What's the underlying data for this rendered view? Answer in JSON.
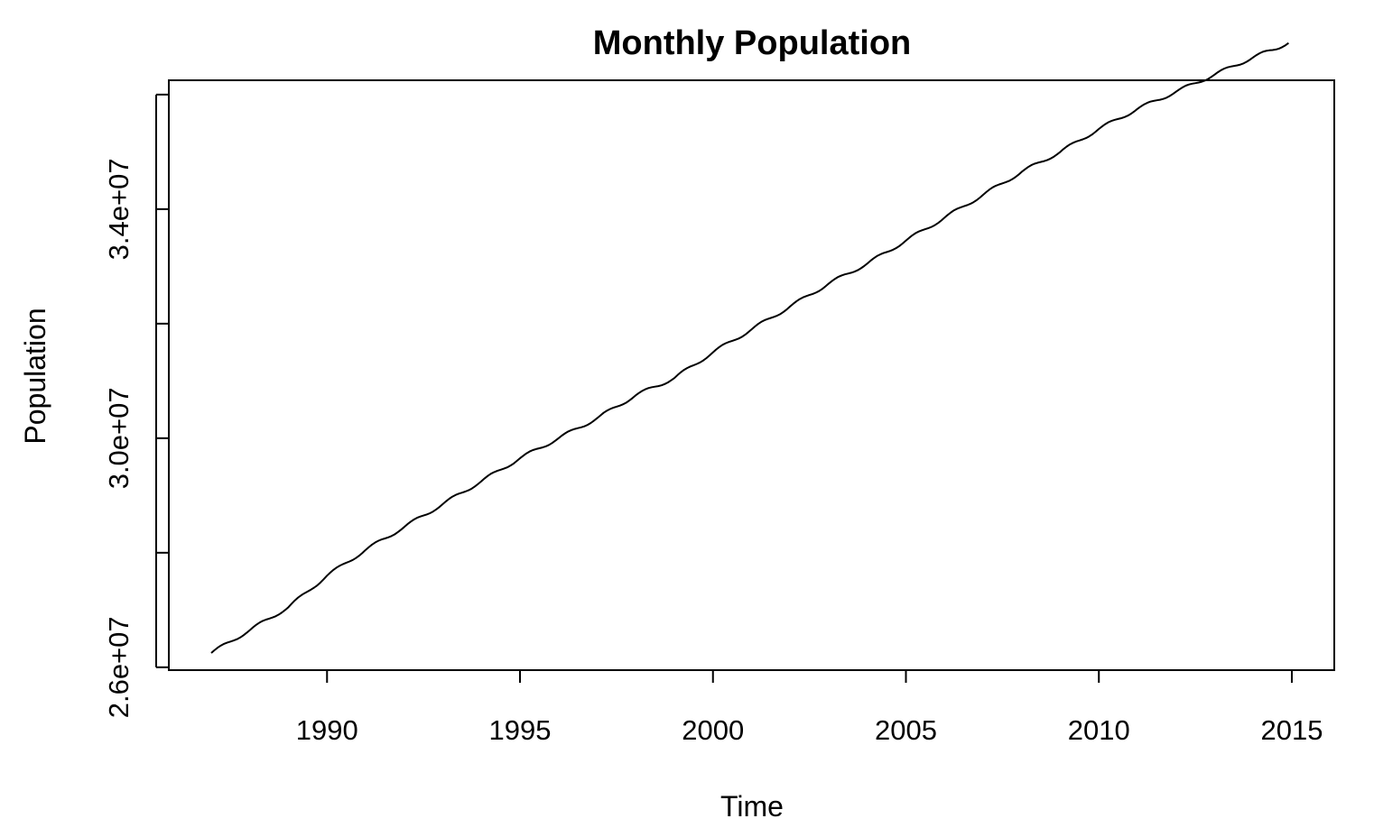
{
  "chart_data": {
    "type": "line",
    "title": "Monthly Population",
    "xlabel": "Time",
    "ylabel": "Population",
    "x_ticks": [
      1990,
      1995,
      2000,
      2005,
      2010,
      2015
    ],
    "x_tick_labels": [
      "1990",
      "1995",
      "2000",
      "2005",
      "2010",
      "2015"
    ],
    "y_ticks": [
      26000000,
      28000000,
      30000000,
      32000000,
      34000000,
      36000000
    ],
    "y_tick_labels": [
      "2.6e+07",
      "",
      "3.0e+07",
      "",
      "3.4e+07",
      ""
    ],
    "xlim": [
      1985.9,
      2016.1
    ],
    "ylim": [
      25950000,
      36250000
    ],
    "grid": false,
    "legend": "none",
    "line_color": "#000000",
    "series": [
      {
        "x": [
          1987.0,
          1988.0,
          1989.0,
          1990.0,
          1991.0,
          1992.0,
          1993.0,
          1994.0,
          1995.0,
          1996.0,
          1997.0,
          1998.0,
          1999.0,
          2000.0,
          2001.0,
          2002.0,
          2003.0,
          2004.0,
          2005.0,
          2006.0,
          2007.0,
          2008.0,
          2009.0,
          2010.0,
          2011.0,
          2012.0,
          2013.0,
          2014.0,
          2014.917
        ],
        "values": [
          26250000,
          26650000,
          27050000,
          27600000,
          28050000,
          28450000,
          28850000,
          29250000,
          29650000,
          30000000,
          30350000,
          30750000,
          31050000,
          31500000,
          31900000,
          32300000,
          32700000,
          33050000,
          33450000,
          33850000,
          34250000,
          34650000,
          35000000,
          35400000,
          35750000,
          36050000,
          36350000,
          36650000,
          36900000
        ]
      }
    ]
  }
}
